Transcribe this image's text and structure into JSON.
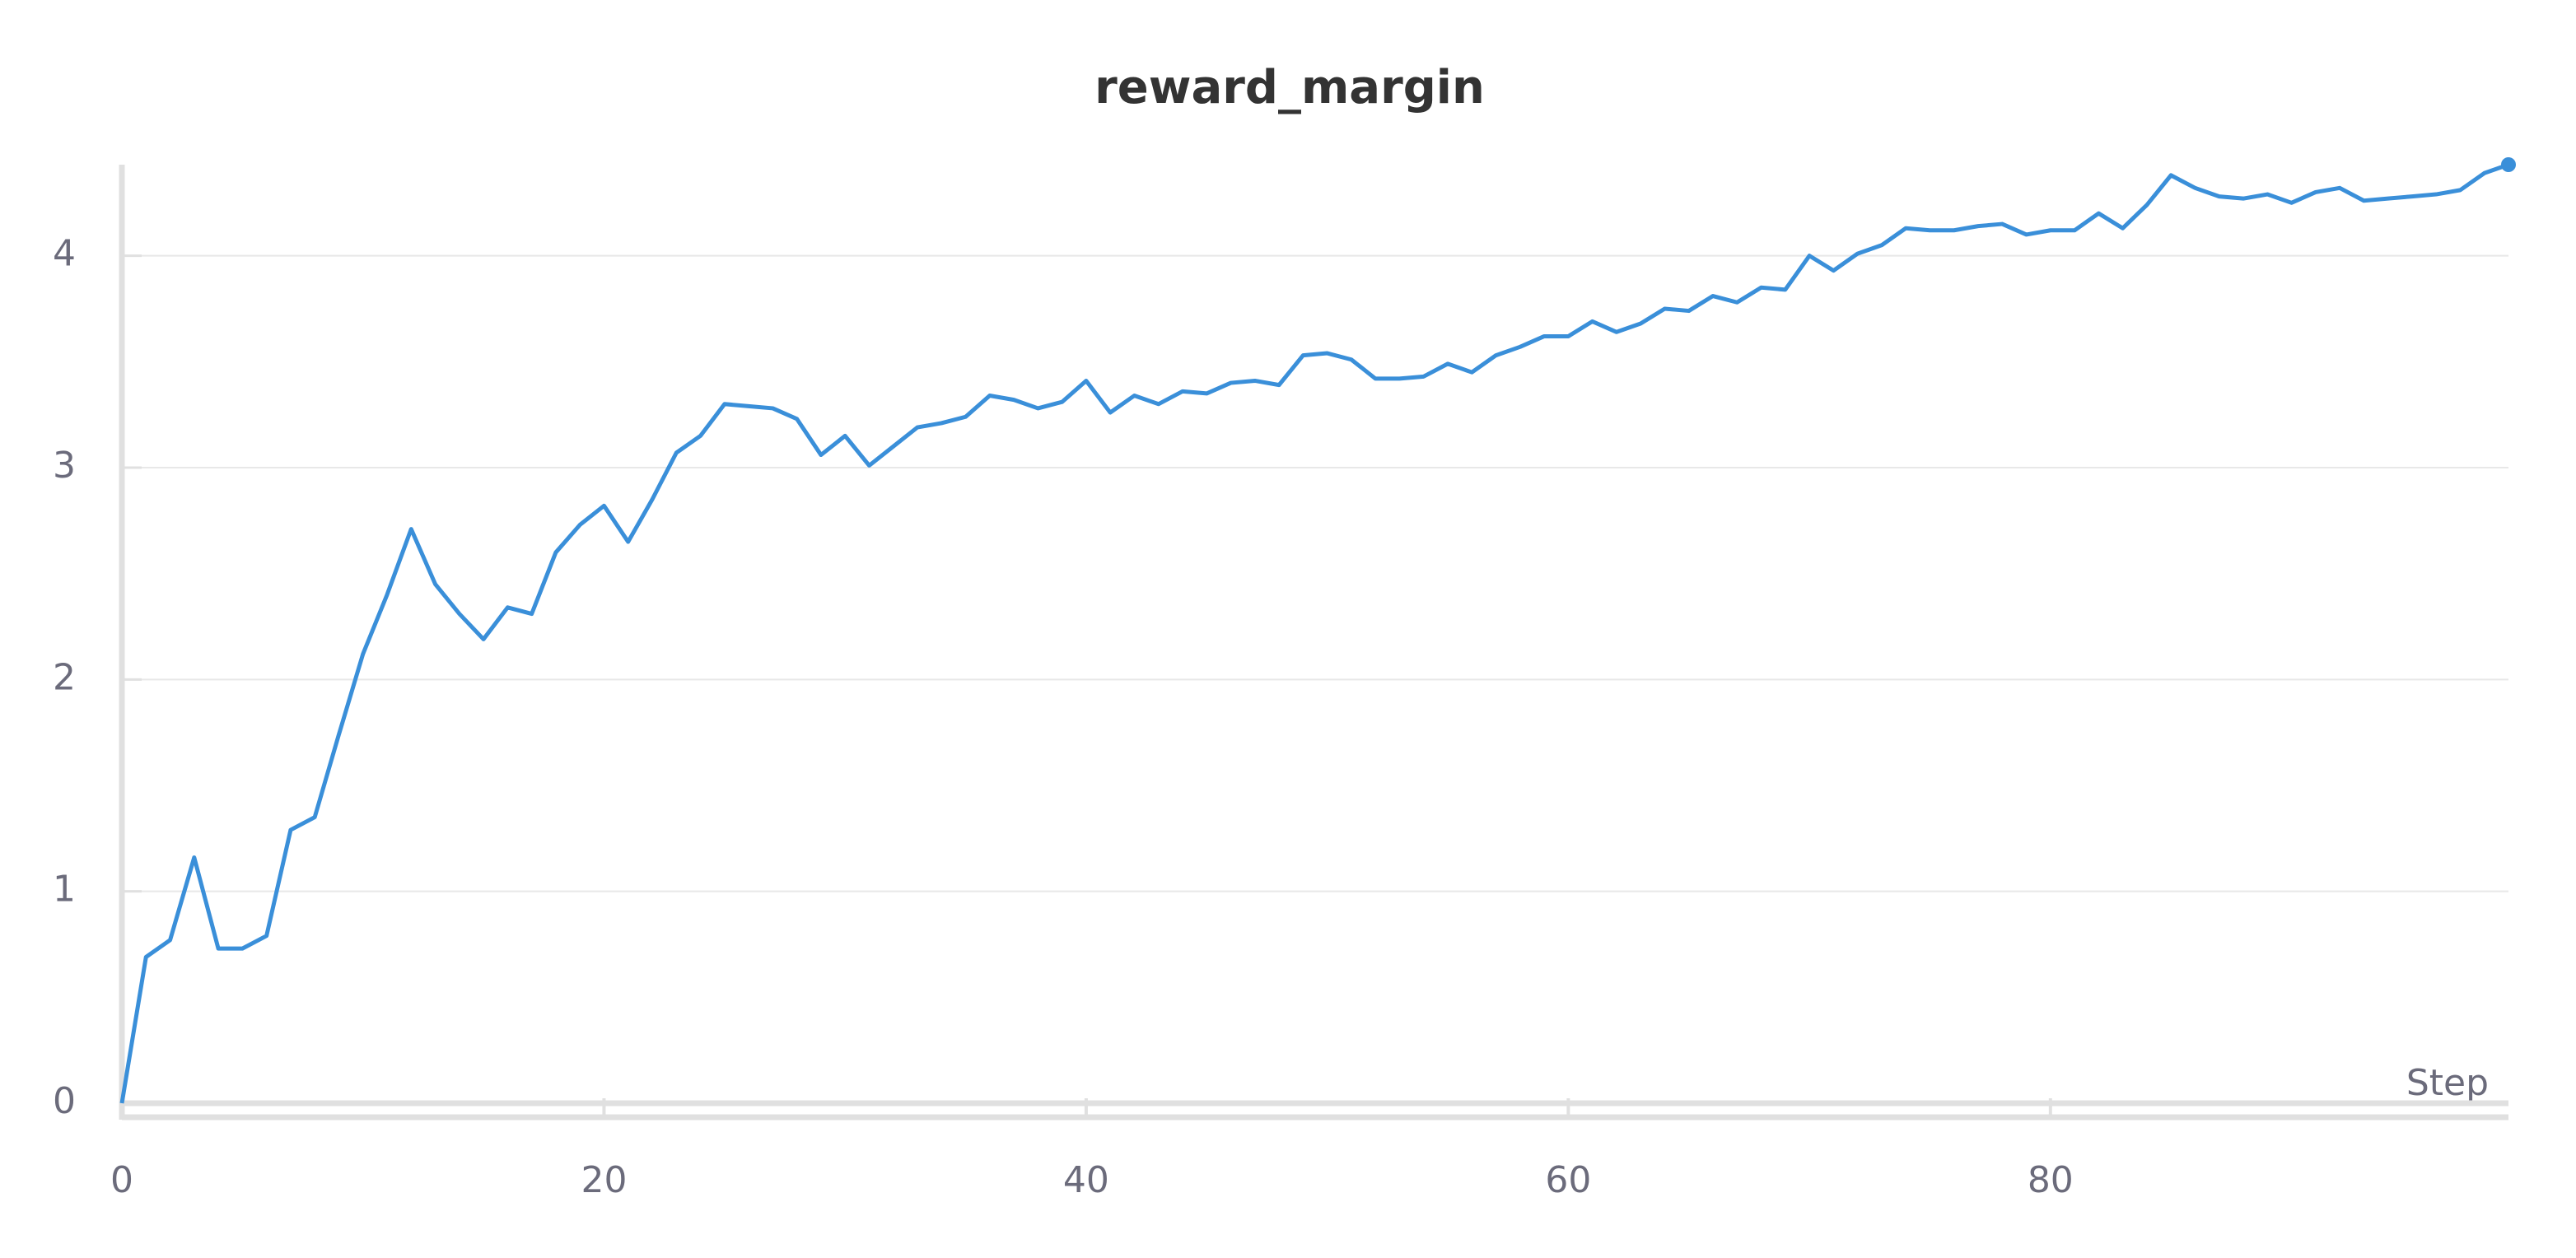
{
  "chart_data": {
    "type": "line",
    "title": "reward_margin",
    "x_label": "Step",
    "x": [
      0,
      1,
      2,
      3,
      4,
      5,
      6,
      7,
      8,
      9,
      10,
      11,
      12,
      13,
      14,
      15,
      16,
      17,
      18,
      19,
      20,
      21,
      22,
      23,
      24,
      25,
      26,
      27,
      28,
      29,
      30,
      31,
      32,
      33,
      34,
      35,
      36,
      37,
      38,
      39,
      40,
      41,
      42,
      43,
      44,
      45,
      46,
      47,
      48,
      49,
      50,
      51,
      52,
      53,
      54,
      55,
      56,
      57,
      58,
      59,
      60,
      61,
      62,
      63,
      64,
      65,
      66,
      67,
      68,
      69,
      70,
      71,
      72,
      73,
      74,
      75,
      76,
      77,
      78,
      79,
      80,
      81,
      82,
      83,
      84,
      85,
      86,
      87,
      88,
      89,
      90,
      91,
      92,
      93,
      94,
      95,
      96,
      97,
      98,
      99
    ],
    "values": [
      0,
      0.69,
      0.77,
      1.16,
      0.73,
      0.73,
      0.79,
      1.29,
      1.35,
      1.74,
      2.12,
      2.4,
      2.71,
      2.45,
      2.31,
      2.19,
      2.34,
      2.31,
      2.6,
      2.73,
      2.82,
      2.65,
      2.85,
      3.07,
      3.15,
      3.3,
      3.29,
      3.28,
      3.23,
      3.06,
      3.15,
      3.01,
      3.1,
      3.19,
      3.21,
      3.24,
      3.34,
      3.32,
      3.28,
      3.31,
      3.41,
      3.26,
      3.34,
      3.3,
      3.36,
      3.35,
      3.4,
      3.41,
      3.39,
      3.53,
      3.54,
      3.51,
      3.42,
      3.42,
      3.43,
      3.49,
      3.45,
      3.53,
      3.57,
      3.62,
      3.62,
      3.69,
      3.64,
      3.68,
      3.75,
      3.74,
      3.81,
      3.78,
      3.85,
      3.84,
      4.0,
      3.93,
      4.01,
      4.05,
      4.13,
      4.12,
      4.12,
      4.14,
      4.15,
      4.1,
      4.12,
      4.12,
      4.2,
      4.13,
      4.24,
      4.38,
      4.32,
      4.28,
      4.27,
      4.29,
      4.25,
      4.3,
      4.32,
      4.26,
      4.27,
      4.28,
      4.29,
      4.31,
      4.39,
      4.43
    ],
    "color": "#3a8fd9",
    "xlim": [
      0,
      99
    ],
    "xticks": [
      0,
      20,
      40,
      60,
      80
    ],
    "ylim": [
      0,
      4.43
    ],
    "yticks": [
      0,
      1,
      2,
      3,
      4
    ],
    "grid": true
  }
}
